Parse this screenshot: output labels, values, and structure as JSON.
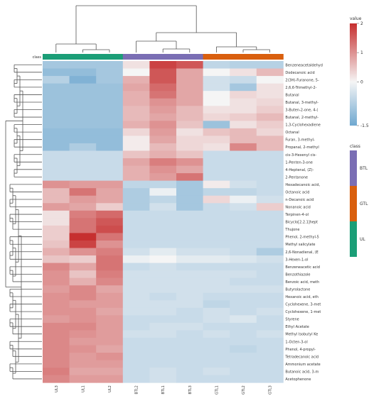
{
  "chart_data": {
    "type": "heatmap",
    "class_label": "class",
    "columns": [
      "UL3",
      "UL1",
      "UL2",
      "BTL2",
      "BTL1",
      "BTL3",
      "GTL1",
      "GTL2",
      "GTL3"
    ],
    "column_classes": [
      "UL",
      "UL",
      "UL",
      "BTL",
      "BTL",
      "BTL",
      "GTL",
      "GTL",
      "GTL"
    ],
    "class_colors": {
      "BTL": "#7a6eb4",
      "GTL": "#d95f0e",
      "UL": "#1b9e77"
    },
    "rows": [
      "Benzeneacetaldehyd",
      "Dodecanoic acid",
      "2(3H)-Furanone, 5-",
      "2,6,6-Trimethyl-2-",
      "Butanal",
      "Butanal, 3-methyl-",
      "3-Buten-2-one, 4-(",
      "Butanal, 2-methyl-",
      "1,3-Cyclohexadiene",
      "Octanal",
      "Furan, 3-methyl-",
      "Propanal, 2-methyl",
      "cis-3-Hexenyl cis-",
      "1-Penten-3-one",
      "4-Heptenal, (Z)-",
      "2-Pentanone",
      "Hexadecanoic acid,",
      "Octanoic acid",
      "n-Decanoic acid",
      "Nonanoic acid",
      "Terpinen-4-ol",
      "Bicyclo[2.2.1]hept",
      "Thujone",
      "Phenol, 2-methyl-5",
      "Methyl salicylate",
      "2,6-Nonadienal, (E",
      "3-Hexen-1-ol",
      "Benzeneacetic acid",
      "Benzothiazole",
      "Benzoic acid, meth",
      "Butyrolactone",
      "Hexanoic acid, eth",
      "Cyclohexene, 3-met",
      "Cyclohexene, 1-met",
      "Styrene",
      "Ethyl Acetate",
      "Methyl Isobutyl Ke",
      "1-Octen-3-ol",
      "Phenol, 4-propyl-",
      "Tetradecanoic acid",
      "Ammonium acetate",
      "Butanoic acid, 3-m",
      "Acetophenone"
    ],
    "values": [
      [
        -0.9,
        -0.9,
        -0.9,
        0.2,
        1.8,
        1.6,
        -0.6,
        -0.7,
        -0.7
      ],
      [
        -1.1,
        -1.1,
        -0.9,
        0.0,
        1.6,
        0.8,
        0.0,
        0.2,
        0.6
      ],
      [
        -0.7,
        -1.3,
        -0.9,
        0.7,
        1.6,
        0.8,
        -0.4,
        -0.5,
        0.0
      ],
      [
        -1.0,
        -1.0,
        -1.0,
        0.8,
        1.4,
        0.8,
        -0.4,
        -0.9,
        0.2
      ],
      [
        -1.0,
        -1.0,
        -1.0,
        0.7,
        1.3,
        0.8,
        0.0,
        0.3,
        0.2
      ],
      [
        -1.0,
        -1.0,
        -1.0,
        0.7,
        1.0,
        0.8,
        0.0,
        0.2,
        0.3
      ],
      [
        -1.0,
        -1.0,
        -1.0,
        0.6,
        0.9,
        0.6,
        0.2,
        0.2,
        0.4
      ],
      [
        -1.0,
        -1.0,
        -1.0,
        0.6,
        0.8,
        0.6,
        0.3,
        0.4,
        0.6
      ],
      [
        -1.0,
        -1.0,
        -1.0,
        0.7,
        1.0,
        0.5,
        -1.0,
        0.2,
        0.4
      ],
      [
        -1.1,
        -1.1,
        -1.1,
        0.3,
        0.9,
        0.2,
        0.5,
        0.6,
        0.3
      ],
      [
        -1.1,
        -1.1,
        -1.1,
        0.1,
        0.8,
        0.3,
        0.3,
        0.6,
        0.6
      ],
      [
        -1.1,
        -0.8,
        -1.1,
        0.1,
        0.6,
        0.3,
        0.2,
        1.1,
        0.6
      ],
      [
        -0.5,
        -0.5,
        -0.5,
        0.5,
        0.7,
        0.5,
        -0.5,
        -0.5,
        -0.5
      ],
      [
        -0.5,
        -0.5,
        -0.5,
        0.8,
        1.2,
        1.0,
        -0.5,
        -0.5,
        -0.5
      ],
      [
        -0.5,
        -0.5,
        -0.5,
        0.7,
        1.0,
        0.8,
        -0.5,
        -0.5,
        -0.5
      ],
      [
        -0.5,
        -0.5,
        -0.5,
        0.7,
        0.9,
        1.3,
        -0.5,
        -0.5,
        -0.5
      ],
      [
        1.0,
        0.9,
        0.9,
        -0.6,
        -0.6,
        -0.9,
        0.1,
        -0.4,
        -0.5
      ],
      [
        0.6,
        1.3,
        0.8,
        -0.8,
        -0.1,
        -0.9,
        -0.6,
        -0.6,
        -0.5
      ],
      [
        0.6,
        0.9,
        0.8,
        -0.8,
        -0.6,
        -0.9,
        0.3,
        -0.1,
        -0.4
      ],
      [
        0.9,
        0.8,
        0.4,
        -0.8,
        -0.4,
        -0.9,
        -0.5,
        -0.4,
        0.4
      ],
      [
        0.2,
        1.2,
        1.4,
        -0.5,
        -0.5,
        -0.5,
        -0.5,
        -0.5,
        -0.5
      ],
      [
        0.2,
        1.3,
        1.6,
        -0.5,
        -0.5,
        -0.5,
        -0.5,
        -0.5,
        -0.5
      ],
      [
        0.4,
        1.3,
        1.7,
        -0.5,
        -0.5,
        -0.5,
        -0.5,
        -0.5,
        -0.5
      ],
      [
        0.4,
        2.0,
        1.3,
        -0.5,
        -0.5,
        -0.5,
        -0.5,
        -0.5,
        -0.5
      ],
      [
        0.5,
        1.8,
        1.0,
        -0.5,
        -0.5,
        -0.5,
        -0.5,
        -0.5,
        -0.5
      ],
      [
        0.7,
        1.0,
        1.2,
        -0.4,
        -0.2,
        -0.4,
        -0.4,
        -0.5,
        -0.8
      ],
      [
        0.5,
        0.4,
        1.3,
        -0.1,
        0.0,
        -0.2,
        -0.2,
        -0.3,
        -0.4
      ],
      [
        1.1,
        0.8,
        1.3,
        -0.5,
        -0.4,
        -0.5,
        -0.5,
        -0.5,
        -0.5
      ],
      [
        1.0,
        0.5,
        1.2,
        -0.4,
        -0.4,
        -0.4,
        -0.4,
        -0.4,
        -0.5
      ],
      [
        1.0,
        0.7,
        1.1,
        -0.4,
        -0.4,
        -0.4,
        -0.4,
        -0.5,
        -0.5
      ],
      [
        0.9,
        1.1,
        0.8,
        -0.4,
        -0.4,
        -0.4,
        -0.4,
        -0.4,
        -0.4
      ],
      [
        1.0,
        1.1,
        0.9,
        -0.4,
        -0.5,
        -0.4,
        -0.5,
        -0.5,
        -0.5
      ],
      [
        1.0,
        0.9,
        0.9,
        -0.4,
        -0.4,
        -0.4,
        -0.6,
        -0.5,
        -0.5
      ],
      [
        1.0,
        1.0,
        0.8,
        -0.4,
        -0.4,
        -0.5,
        -0.4,
        -0.5,
        -0.4
      ],
      [
        0.9,
        1.0,
        0.9,
        -0.5,
        -0.5,
        -0.5,
        -0.4,
        -0.3,
        -0.5
      ],
      [
        1.1,
        1.1,
        0.9,
        -0.5,
        -0.4,
        -0.4,
        -0.5,
        -0.5,
        -0.5
      ],
      [
        1.1,
        1.0,
        0.9,
        -0.4,
        -0.4,
        -0.5,
        -0.4,
        -0.5,
        -0.4
      ],
      [
        1.1,
        0.9,
        0.9,
        -0.5,
        -0.5,
        -0.5,
        -0.5,
        -0.5,
        -0.5
      ],
      [
        1.1,
        1.0,
        0.8,
        -0.5,
        -0.5,
        -0.5,
        -0.5,
        -0.6,
        -0.5
      ],
      [
        1.1,
        0.9,
        1.0,
        -0.5,
        -0.5,
        -0.5,
        -0.5,
        -0.5,
        -0.5
      ],
      [
        1.1,
        0.9,
        0.9,
        -0.5,
        -0.5,
        -0.5,
        -0.5,
        -0.5,
        -0.5
      ],
      [
        1.2,
        0.8,
        0.8,
        -0.5,
        -0.4,
        -0.5,
        -0.4,
        -0.5,
        -0.5
      ],
      [
        1.1,
        0.9,
        0.9,
        -0.5,
        -0.4,
        -0.5,
        -0.5,
        -0.5,
        -0.5
      ]
    ],
    "colorbar": {
      "title": "value",
      "range": [
        -1.5,
        2
      ],
      "tick_labels": [
        "2",
        "1",
        "0",
        "-1.5"
      ],
      "tick_values": [
        2,
        1,
        0,
        -1.5
      ],
      "low_color": "#6fa8d0",
      "mid_color": "#f5f5f5",
      "high_color": "#c62f2f"
    },
    "class_legend": {
      "title": "class",
      "entries": [
        "BTL",
        "GTL",
        "UL"
      ]
    }
  }
}
